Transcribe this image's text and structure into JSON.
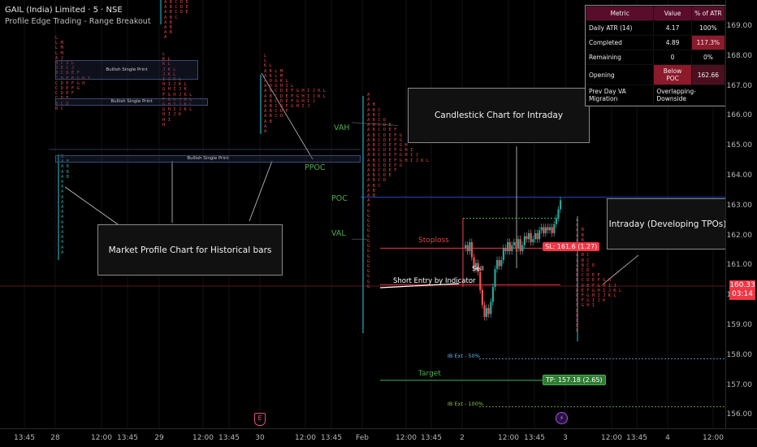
{
  "header": {
    "title": "GAIL (India) Limited · 5 · NSE",
    "subtitle": "Profile Edge Trading - Range Breakout"
  },
  "price_axis": {
    "ticks": [
      "169.00",
      "168.00",
      "167.00",
      "166.00",
      "165.00",
      "164.00",
      "163.00",
      "162.00",
      "161.00",
      "160.00",
      "159.00",
      "158.00",
      "157.00",
      "156.00"
    ],
    "last_price": "160.33",
    "countdown": "03:14"
  },
  "time_axis": {
    "ticks": [
      "13:45",
      "28",
      "12:00",
      "13:45",
      "29",
      "12:00",
      "13:45",
      "30",
      "12:00",
      "13:45",
      "Feb",
      "12:00",
      "13:45",
      "2",
      "12:00",
      "13:45",
      "3",
      "12:00",
      "13:45",
      "4",
      "12:00"
    ]
  },
  "stats_table": {
    "headers": [
      "Metric",
      "Value",
      "% of ATR"
    ],
    "rows": [
      {
        "metric": "Daily ATR (14)",
        "value": "4.17",
        "pct": "100%"
      },
      {
        "metric": "Completed",
        "value": "4.89",
        "pct": "117.3%"
      },
      {
        "metric": "Remaining",
        "value": "0",
        "pct": "0%"
      },
      {
        "metric": "Opening",
        "value": "Below POC",
        "pct": "162.66"
      },
      {
        "metric": "Prev Day VA Migration",
        "value": "Overlapping-Downside",
        "pct": ""
      }
    ]
  },
  "annotations": {
    "market_profile": "Market Profile Chart for Historical bars",
    "candlestick": "Candlestick Chart for Intraday",
    "intraday": "Intraday (Developing TPOs)"
  },
  "levels": {
    "vah": "VAH",
    "poc": "POC",
    "val": "VAL",
    "ppoc": "PPOC",
    "stoploss": "Stoploss",
    "short_entry": "Short Entry by Indicator",
    "sell": "Sell",
    "target": "Target",
    "ib_ext_50": "IB Ext - 50%",
    "ib_ext_100": "IB Ext - 100%",
    "sl_tag": "SL: 161.6 (1.27)",
    "tp_tag": "TP: 157.18 (2.65)"
  },
  "single_prints": {
    "label": "Bullish Single Print"
  },
  "markers": {
    "earnings": "E",
    "dividend": "⚡"
  },
  "colors": {
    "up": "#26a69a",
    "down": "#ef5350",
    "poc_line": "#2962ff",
    "target": "#4caf50",
    "stoploss": "#f23645"
  },
  "tpo_letters": {
    "p1_top": "A B C D E\nA B C D E\nA B C D E\nA B C\nA B\nA B\nA B\nA",
    "p1_mid": "L\nL M\nL M\nL M\nA J\nB C J L\nD E C J\nB C D E F\nC D E F G H I\nC D E F G H\nC D E F G\nC D E F\nC D E\nB C D\nB C",
    "p1_low": "B\nA B\nA B\nA B\nA B\nA\nA\nA\nA\nA\nA\nA\nA\nA\nA\nA\nA\nA\nA\nA",
    "p2": "L\nK L\nK L\nJ K L\nJ K L\nI J K L\nH I J K L\nG H I J K\nF G H J K L\nF G H J K L\nG H I J K L\nG H I J K L\nH I J K\nH I\nH",
    "p3": "L\nL\nK L\nA K L M\nA K L M\nA D G K L\nA D G H I L\nA B C D E F G H I J K L\nA B C D E F G H I J K L\nA B C D E F G H I J\nA B C D F G H I J\nA B C D F\nA B C D\nA B\nA\nA",
    "p4": "A\nA\nA B\nA B C\nA B C\nA B C D\nA B C D E\nA B C D E F\nA B C D E F G\nA B C D E F G\nA B C D E F G H\nA B C D E F G H I\nA B C D E F G H I J\nA B C D E F G H I J K L\nA B C D E F G\nA B C D E F\nA B C D E\nA B C D\nA B C\nA B\nA B\nA\nA\nG\nG\nG\nG\nG\nG\nG\nG\nG\nG\nG\nG\nG\nG\nG\nG",
    "p5": "A\nA\nA B\nA B\nA B\nA B\nA B C\nA B C\nA B C\nA B C D\nB C D\nB C D E F\nB C D E F G H\nC D E F G H I J\nD E F G H I J K L\nE F G H I J K L\nE F G I J K\nF G H I\nE\nE\nE\nE\nE"
  }
}
